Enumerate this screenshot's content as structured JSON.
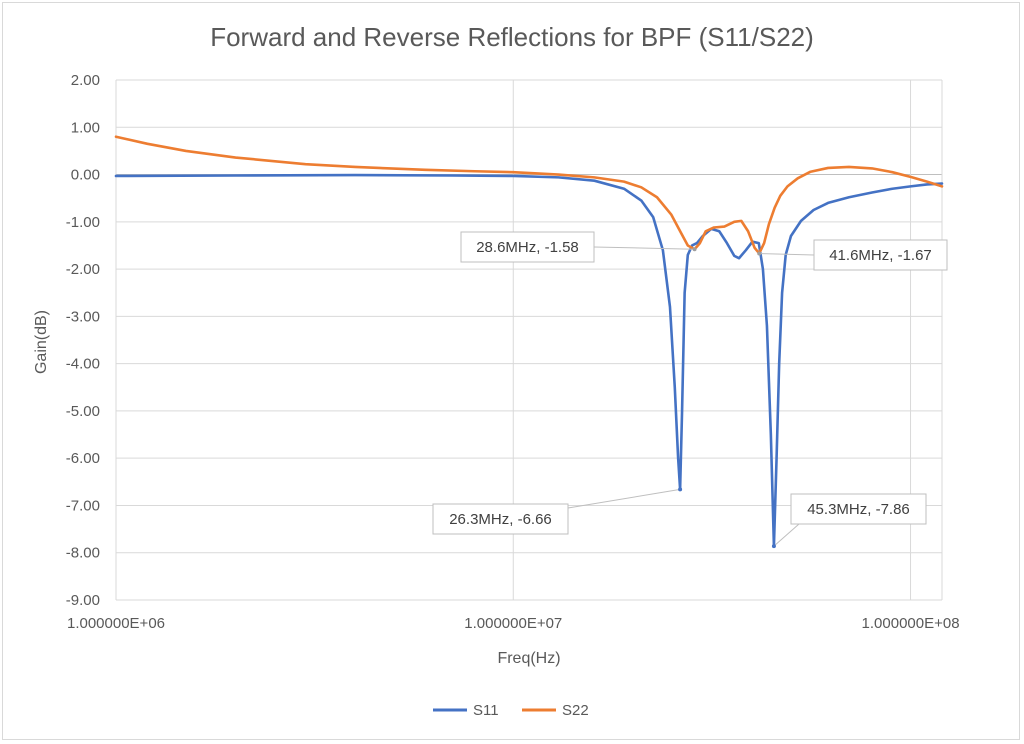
{
  "chart_data": {
    "type": "line",
    "title": "Forward and Reverse Reflections for BPF (S11/S22)",
    "xlabel": "Freq(Hz)",
    "ylabel": "Gain(dB)",
    "xscale": "log",
    "xlim": [
      1000000,
      120000000
    ],
    "ylim": [
      -9,
      2
    ],
    "yticks": [
      2,
      1,
      0,
      -1,
      -2,
      -3,
      -4,
      -5,
      -6,
      -7,
      -8,
      -9
    ],
    "ytick_labels": [
      "2.00",
      "1.00",
      "0.00",
      "-1.00",
      "-2.00",
      "-3.00",
      "-4.00",
      "-5.00",
      "-6.00",
      "-7.00",
      "-8.00",
      "-9.00"
    ],
    "xticks": [
      1000000,
      10000000,
      100000000
    ],
    "xtick_labels": [
      "1.000000E+06",
      "1.000000E+07",
      "1.000000E+08"
    ],
    "grid": true,
    "legend_position": "bottom",
    "series": [
      {
        "name": "S11",
        "color": "#4472c4",
        "points": [
          [
            1000000,
            -0.03
          ],
          [
            2000000,
            -0.02
          ],
          [
            4000000,
            -0.01
          ],
          [
            7000000,
            -0.02
          ],
          [
            10000000,
            -0.03
          ],
          [
            13000000,
            -0.06
          ],
          [
            16000000,
            -0.13
          ],
          [
            19000000,
            -0.3
          ],
          [
            21000000,
            -0.55
          ],
          [
            22500000,
            -0.9
          ],
          [
            23800000,
            -1.6
          ],
          [
            24800000,
            -2.8
          ],
          [
            25500000,
            -4.5
          ],
          [
            26000000,
            -6.0
          ],
          [
            26300000,
            -6.66
          ],
          [
            26600000,
            -5.0
          ],
          [
            27000000,
            -2.5
          ],
          [
            27500000,
            -1.7
          ],
          [
            28200000,
            -1.5
          ],
          [
            29000000,
            -1.45
          ],
          [
            30000000,
            -1.3
          ],
          [
            31500000,
            -1.15
          ],
          [
            33000000,
            -1.2
          ],
          [
            34500000,
            -1.45
          ],
          [
            36000000,
            -1.72
          ],
          [
            37000000,
            -1.77
          ],
          [
            38500000,
            -1.6
          ],
          [
            40000000,
            -1.42
          ],
          [
            41500000,
            -1.45
          ],
          [
            42500000,
            -2.0
          ],
          [
            43500000,
            -3.2
          ],
          [
            44500000,
            -5.5
          ],
          [
            45300000,
            -7.86
          ],
          [
            46000000,
            -6.0
          ],
          [
            46700000,
            -4.0
          ],
          [
            47500000,
            -2.5
          ],
          [
            48500000,
            -1.7
          ],
          [
            50000000,
            -1.3
          ],
          [
            53000000,
            -0.98
          ],
          [
            57000000,
            -0.75
          ],
          [
            62000000,
            -0.6
          ],
          [
            70000000,
            -0.48
          ],
          [
            80000000,
            -0.38
          ],
          [
            90000000,
            -0.3
          ],
          [
            100000000,
            -0.25
          ],
          [
            110000000,
            -0.21
          ],
          [
            120000000,
            -0.19
          ]
        ]
      },
      {
        "name": "S22",
        "color": "#ed7d31",
        "points": [
          [
            1000000,
            0.8
          ],
          [
            1200000,
            0.65
          ],
          [
            1500000,
            0.5
          ],
          [
            2000000,
            0.36
          ],
          [
            3000000,
            0.22
          ],
          [
            4000000,
            0.16
          ],
          [
            6000000,
            0.1
          ],
          [
            8000000,
            0.07
          ],
          [
            10000000,
            0.05
          ],
          [
            13000000,
            0.0
          ],
          [
            16000000,
            -0.06
          ],
          [
            19000000,
            -0.15
          ],
          [
            21000000,
            -0.27
          ],
          [
            23000000,
            -0.48
          ],
          [
            25000000,
            -0.85
          ],
          [
            26500000,
            -1.25
          ],
          [
            27500000,
            -1.5
          ],
          [
            28600000,
            -1.58
          ],
          [
            29500000,
            -1.45
          ],
          [
            30500000,
            -1.2
          ],
          [
            32000000,
            -1.12
          ],
          [
            34000000,
            -1.1
          ],
          [
            36000000,
            -1.0
          ],
          [
            37500000,
            -0.98
          ],
          [
            39000000,
            -1.2
          ],
          [
            40500000,
            -1.55
          ],
          [
            41600000,
            -1.67
          ],
          [
            42800000,
            -1.45
          ],
          [
            44000000,
            -1.05
          ],
          [
            45500000,
            -0.7
          ],
          [
            47000000,
            -0.45
          ],
          [
            49000000,
            -0.25
          ],
          [
            52000000,
            -0.08
          ],
          [
            56000000,
            0.06
          ],
          [
            62000000,
            0.14
          ],
          [
            70000000,
            0.16
          ],
          [
            80000000,
            0.13
          ],
          [
            90000000,
            0.05
          ],
          [
            100000000,
            -0.05
          ],
          [
            110000000,
            -0.15
          ],
          [
            120000000,
            -0.25
          ]
        ]
      }
    ],
    "annotations": [
      {
        "label": "28.6MHz, -1.58",
        "x": 28600000,
        "y": -1.58,
        "side": "left"
      },
      {
        "label": "41.6MHz, -1.67",
        "x": 41600000,
        "y": -1.67,
        "side": "right"
      },
      {
        "label": "26.3MHz, -6.66",
        "x": 26300000,
        "y": -6.66,
        "side": "left-below"
      },
      {
        "label": "45.3MHz, -7.86",
        "x": 45300000,
        "y": -7.86,
        "side": "right-above"
      }
    ]
  }
}
